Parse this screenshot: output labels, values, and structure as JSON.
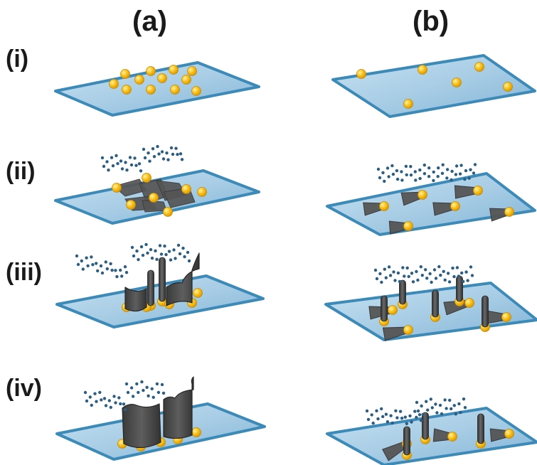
{
  "columns": [
    {
      "id": "a",
      "label": "(a)"
    },
    {
      "id": "b",
      "label": "(b)"
    }
  ],
  "rows": [
    {
      "id": "i",
      "label": "(i)"
    },
    {
      "id": "ii",
      "label": "(ii)"
    },
    {
      "id": "iii",
      "label": "(iii)"
    },
    {
      "id": "iv",
      "label": "(iv)"
    }
  ],
  "colors": {
    "substrate_fill": "#a9cfe6",
    "substrate_edge": "#3c8ab8",
    "catalyst": "#f5b81a",
    "structure": "#4a4a4a",
    "precursor_dots": "#2b5e82"
  }
}
